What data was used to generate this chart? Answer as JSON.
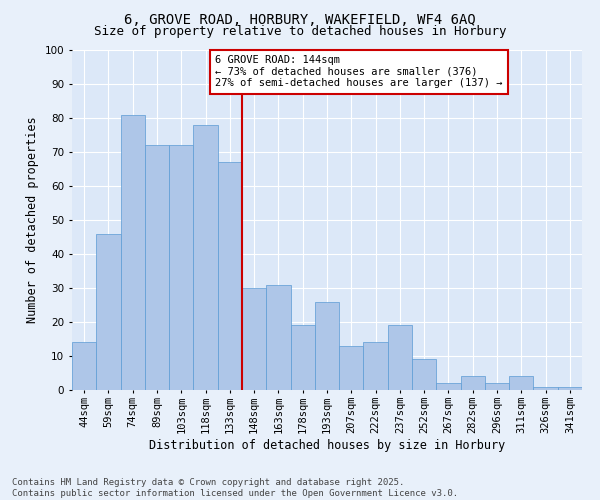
{
  "title": "6, GROVE ROAD, HORBURY, WAKEFIELD, WF4 6AQ",
  "subtitle": "Size of property relative to detached houses in Horbury",
  "xlabel": "Distribution of detached houses by size in Horbury",
  "ylabel": "Number of detached properties",
  "categories": [
    "44sqm",
    "59sqm",
    "74sqm",
    "89sqm",
    "103sqm",
    "118sqm",
    "133sqm",
    "148sqm",
    "163sqm",
    "178sqm",
    "193sqm",
    "207sqm",
    "222sqm",
    "237sqm",
    "252sqm",
    "267sqm",
    "282sqm",
    "296sqm",
    "311sqm",
    "326sqm",
    "341sqm"
  ],
  "values": [
    14,
    46,
    81,
    72,
    72,
    78,
    67,
    30,
    31,
    19,
    26,
    13,
    14,
    19,
    9,
    2,
    4,
    2,
    4,
    1,
    1
  ],
  "bar_color": "#aec6e8",
  "bar_edge_color": "#5b9bd5",
  "background_color": "#dce8f8",
  "fig_background_color": "#e8f0fa",
  "grid_color": "#ffffff",
  "vline_color": "#cc0000",
  "annotation_text": "6 GROVE ROAD: 144sqm\n← 73% of detached houses are smaller (376)\n27% of semi-detached houses are larger (137) →",
  "annotation_box_color": "#cc0000",
  "footer": "Contains HM Land Registry data © Crown copyright and database right 2025.\nContains public sector information licensed under the Open Government Licence v3.0.",
  "ylim": [
    0,
    100
  ],
  "title_fontsize": 10,
  "subtitle_fontsize": 9,
  "xlabel_fontsize": 8.5,
  "ylabel_fontsize": 8.5,
  "tick_fontsize": 7.5,
  "footer_fontsize": 6.5,
  "annotation_fontsize": 7.5
}
